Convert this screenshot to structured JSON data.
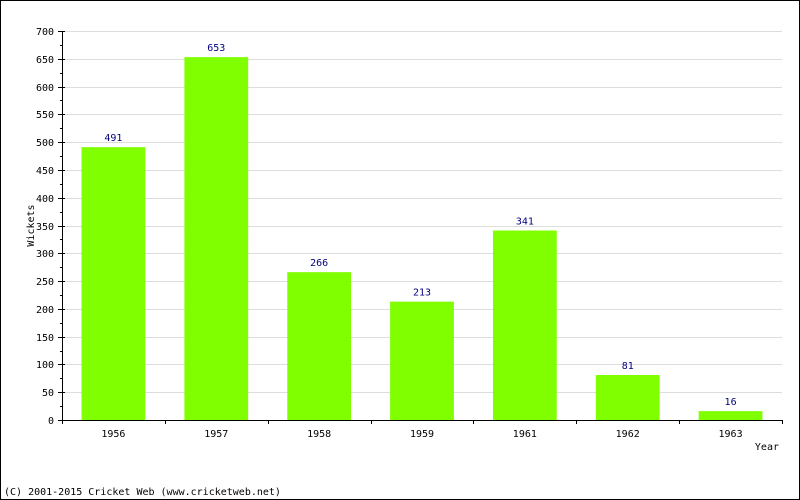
{
  "chart_data": {
    "type": "bar",
    "title": "",
    "categories": [
      "1956",
      "1957",
      "1958",
      "1959",
      "1961",
      "1962",
      "1963"
    ],
    "values": [
      491,
      653,
      266,
      213,
      341,
      81,
      16
    ],
    "xlabel": "Year",
    "ylabel": "Wickets",
    "ylim": [
      0,
      700
    ],
    "ytick_step": 50,
    "grid": true,
    "bar_color": "#80ff00",
    "data_label_color": "#000080"
  },
  "footer": {
    "copyright": "(C) 2001-2015 Cricket Web (www.cricketweb.net)"
  }
}
